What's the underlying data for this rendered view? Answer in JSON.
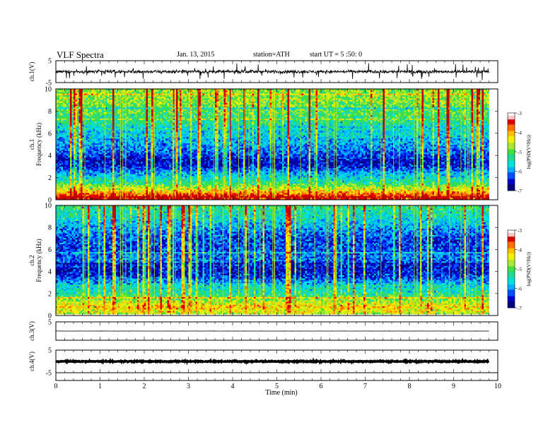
{
  "header": {
    "title": "VLF Spectra",
    "date": "Jan. 13, 2015",
    "station": "station=ATH",
    "start": "start UT = 5 :50: 0"
  },
  "colors": {
    "palette": [
      "#000080",
      "#0000d0",
      "#0050ff",
      "#00b0ff",
      "#00e0e0",
      "#20d890",
      "#40e040",
      "#a8e830",
      "#f0f000",
      "#ffc000",
      "#ff7000",
      "#e00000",
      "#c00000"
    ],
    "colorbar_top": "#ffffff",
    "trace": "#000000"
  },
  "chart_data": [
    {
      "type": "line",
      "panel": "ch1-waveform",
      "ylabel": "ch.1(V)",
      "ylim": [
        -5,
        5
      ],
      "yticks": [
        "5",
        "-5"
      ],
      "xlim": [
        0,
        10
      ],
      "x_extent": [
        0,
        9.8
      ],
      "baseline": 0,
      "noise_amplitude": 1.2,
      "spike_amplitude": 3.5
    },
    {
      "type": "heatmap",
      "panel": "ch1-spectrogram",
      "ylabel": "ch.1\nFrequency (kHz)",
      "ylabel_lines": [
        "ch.1",
        "Frequency (kHz)"
      ],
      "ylim": [
        0,
        10
      ],
      "yticks": [
        "0",
        "2",
        "4",
        "6",
        "8",
        "10"
      ],
      "xlim": [
        0,
        10
      ],
      "x_extent": [
        0,
        9.8
      ],
      "colorbar": {
        "label": "log(PSD(V²/Hz))",
        "range": [
          -7,
          -3
        ],
        "ticks": [
          "-3",
          "-4",
          "-5",
          "-6",
          "-7"
        ]
      },
      "mean_log_psd_profile": [
        {
          "f": 0.2,
          "v": -3.4
        },
        {
          "f": 0.5,
          "v": -3.8
        },
        {
          "f": 1.0,
          "v": -4.6
        },
        {
          "f": 1.5,
          "v": -5.3
        },
        {
          "f": 2.0,
          "v": -5.6
        },
        {
          "f": 2.5,
          "v": -6.0
        },
        {
          "f": 3.0,
          "v": -6.5
        },
        {
          "f": 3.5,
          "v": -6.6
        },
        {
          "f": 4.0,
          "v": -6.3
        },
        {
          "f": 5.0,
          "v": -5.9
        },
        {
          "f": 6.0,
          "v": -5.6
        },
        {
          "f": 7.0,
          "v": -5.3
        },
        {
          "f": 8.0,
          "v": -5.0
        },
        {
          "f": 9.0,
          "v": -4.8
        },
        {
          "f": 10.0,
          "v": -4.8
        }
      ]
    },
    {
      "type": "heatmap",
      "panel": "ch2-spectrogram",
      "ylabel": "ch.2\nFrequency (kHz)",
      "ylabel_lines": [
        "ch.2",
        "Frequency (kHz)"
      ],
      "ylim": [
        0,
        10
      ],
      "yticks": [
        "0",
        "2",
        "4",
        "6",
        "8",
        "10"
      ],
      "xlim": [
        0,
        10
      ],
      "x_extent": [
        0,
        9.8
      ],
      "colorbar": {
        "label": "log(PSD(V²/Hz))",
        "range": [
          -7,
          -3
        ],
        "ticks": [
          "-3",
          "-4",
          "-5",
          "-6",
          "-7"
        ]
      },
      "mean_log_psd_profile": [
        {
          "f": 0.2,
          "v": -4.6
        },
        {
          "f": 0.6,
          "v": -4.2
        },
        {
          "f": 1.0,
          "v": -4.5
        },
        {
          "f": 1.5,
          "v": -5.0
        },
        {
          "f": 2.0,
          "v": -5.4
        },
        {
          "f": 2.5,
          "v": -5.6
        },
        {
          "f": 3.0,
          "v": -6.0
        },
        {
          "f": 3.5,
          "v": -6.4
        },
        {
          "f": 4.0,
          "v": -6.6
        },
        {
          "f": 4.5,
          "v": -6.4
        },
        {
          "f": 5.0,
          "v": -6.1
        },
        {
          "f": 6.0,
          "v": -6.3
        },
        {
          "f": 7.0,
          "v": -6.3
        },
        {
          "f": 8.0,
          "v": -5.9
        },
        {
          "f": 9.0,
          "v": -5.5
        },
        {
          "f": 10.0,
          "v": -5.2
        }
      ]
    },
    {
      "type": "line",
      "panel": "ch3-waveform",
      "ylabel": "ch.3(V)",
      "ylim": [
        -5,
        5
      ],
      "yticks": [
        "5"
      ],
      "xlim": [
        0,
        10
      ],
      "x_extent": [
        0,
        9.8
      ],
      "baseline": 0,
      "noise_amplitude": 0.12,
      "spike_amplitude": 0.0
    },
    {
      "type": "line",
      "panel": "ch4-waveform",
      "ylabel": "ch.4(V)",
      "ylim": [
        -5,
        5
      ],
      "yticks": [
        "5",
        "-5"
      ],
      "xlim": [
        0,
        10
      ],
      "x_extent": [
        0,
        9.8
      ],
      "baseline": 0,
      "noise_amplitude": 0.35,
      "spike_amplitude": 0.0
    }
  ],
  "xaxis": {
    "label": "Time (min)",
    "ticks": [
      "0",
      "1",
      "2",
      "3",
      "4",
      "5",
      "6",
      "7",
      "8",
      "9",
      "10"
    ],
    "range": [
      0,
      10
    ]
  }
}
